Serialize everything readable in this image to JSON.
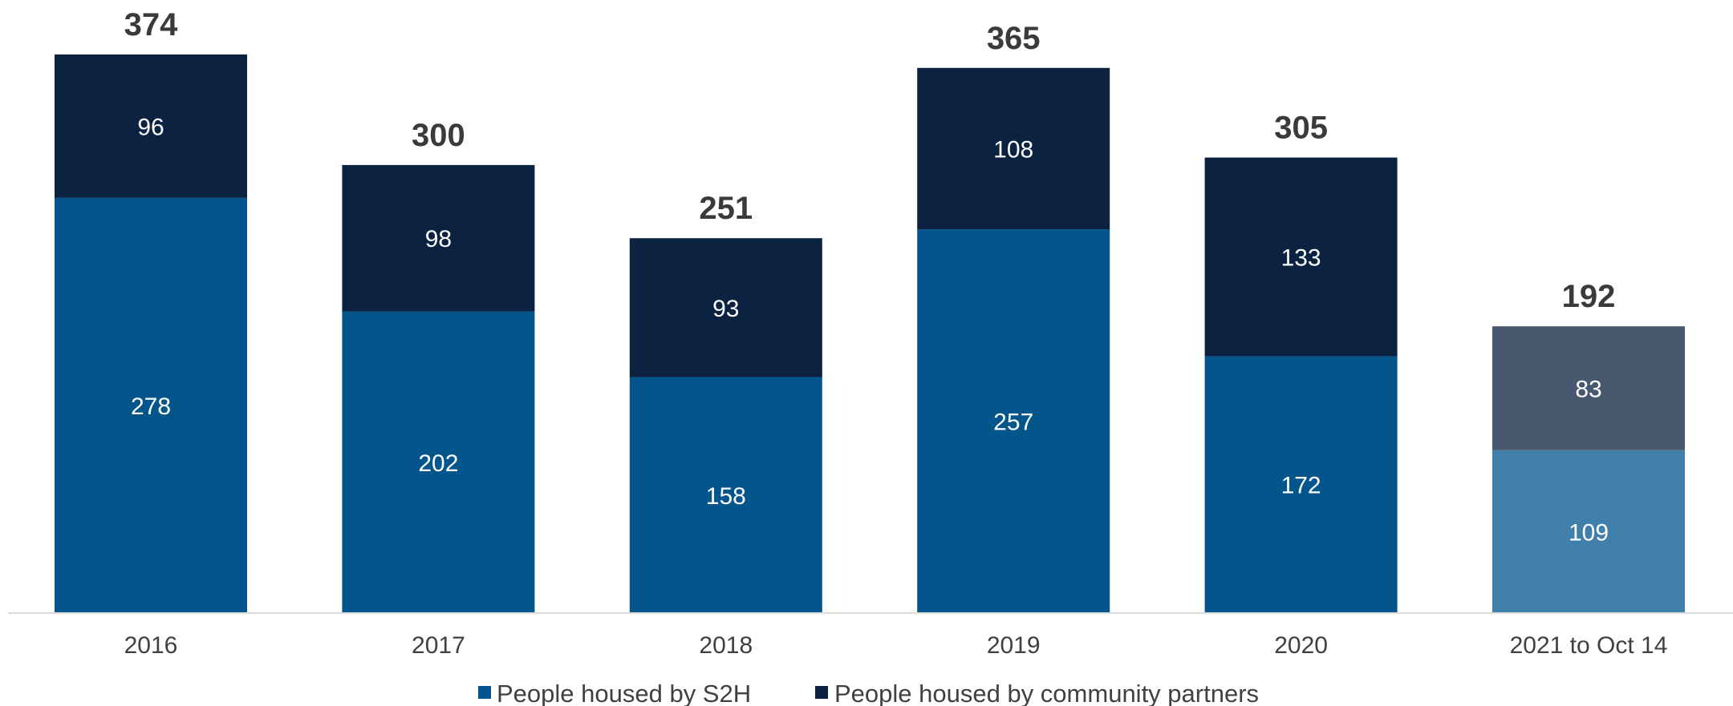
{
  "chart_data": {
    "type": "bar",
    "stacked": true,
    "categories": [
      "2016",
      "2017",
      "2018",
      "2019",
      "2020",
      "2021 to Oct 14"
    ],
    "series": [
      {
        "name": "People housed by S2H",
        "values": [
          278,
          202,
          158,
          257,
          172,
          109
        ],
        "color": "#03558c"
      },
      {
        "name": "People housed by community partners",
        "values": [
          96,
          98,
          93,
          108,
          133,
          83
        ],
        "color": "#0c2241"
      }
    ],
    "totals": [
      374,
      300,
      251,
      365,
      305,
      192
    ],
    "highlight_last_category": {
      "S2H_color": "#3f7faa",
      "partners_color": "#48586e"
    },
    "ylim": [
      0,
      374
    ],
    "grid": false,
    "legend_position": "bottom"
  }
}
